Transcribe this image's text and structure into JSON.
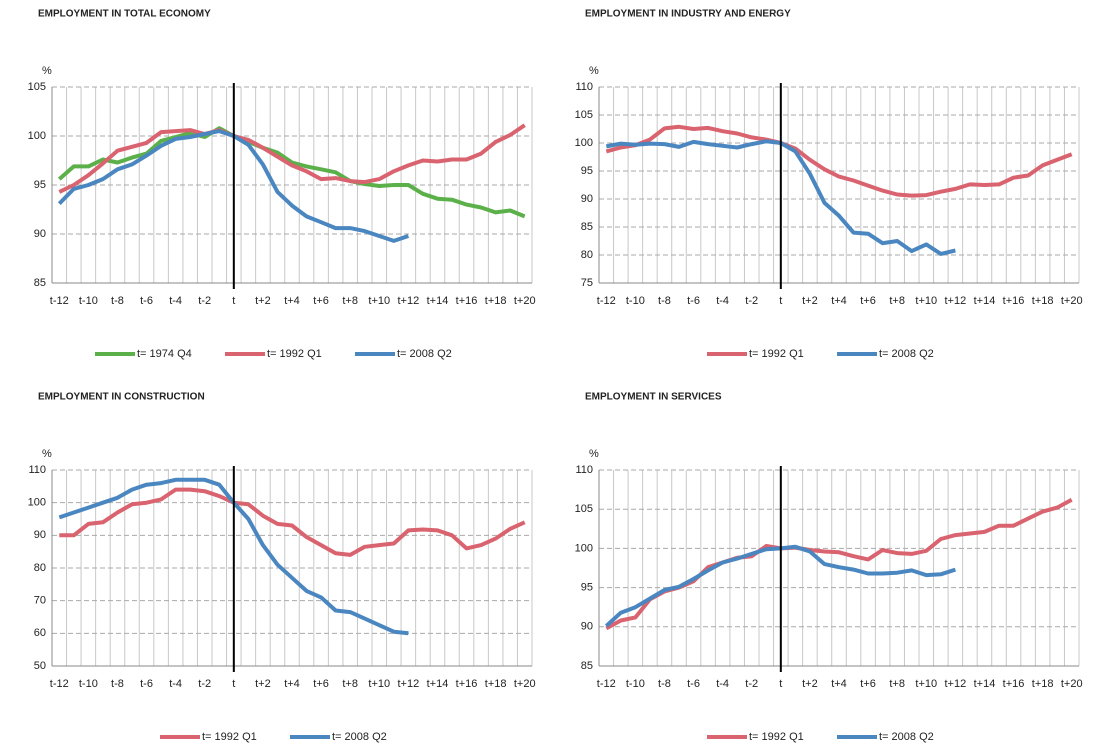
{
  "chart_data": [
    {
      "type": "line",
      "title": "EMPLOYMENT IN TOTAL ECONOMY",
      "y_unit": "%",
      "categories": [
        "t-12",
        null,
        "t-10",
        null,
        "t-8",
        null,
        "t-6",
        null,
        "t-4",
        null,
        "t-2",
        null,
        "t",
        null,
        "t+2",
        null,
        "t+4",
        null,
        "t+6",
        null,
        "t+8",
        null,
        "t+10",
        null,
        "t+12",
        null,
        "t+14",
        null,
        "t+16",
        null,
        "t+18",
        null,
        "t+20"
      ],
      "ylim": [
        85,
        105
      ],
      "yticks": [
        85,
        90,
        95,
        100,
        105
      ],
      "grid": true,
      "marker_line": {
        "at": "t",
        "color": "#000000"
      },
      "series": [
        {
          "name": "t= 1974 Q4",
          "color": "#5cb04a",
          "values": [
            95.6,
            96.9,
            96.9,
            97.6,
            97.3,
            97.8,
            98.2,
            99.5,
            99.9,
            100.3,
            99.9,
            100.8,
            100,
            99.4,
            98.8,
            98.3,
            97.3,
            96.9,
            96.6,
            96.3,
            95.4,
            95.1,
            94.9,
            95.0,
            95.0,
            94.1,
            93.6,
            93.5,
            93.0,
            92.7,
            92.2,
            92.4,
            91.8
          ]
        },
        {
          "name": "t= 1992 Q1",
          "color": "#d9636f",
          "values": [
            94.3,
            95.0,
            96.0,
            97.2,
            98.5,
            98.9,
            99.3,
            100.4,
            100.5,
            100.6,
            100.2,
            100.6,
            100,
            99.6,
            98.8,
            97.9,
            97.0,
            96.4,
            95.6,
            95.7,
            95.4,
            95.3,
            95.6,
            96.4,
            97.0,
            97.5,
            97.4,
            97.6,
            97.6,
            98.2,
            99.4,
            100.1,
            101.1
          ]
        },
        {
          "name": "t= 2008 Q2",
          "color": "#4a86c0",
          "values": [
            93.1,
            94.6,
            95.0,
            95.6,
            96.6,
            97.1,
            98.0,
            99.0,
            99.7,
            99.9,
            100.2,
            100.5,
            100,
            99.1,
            97.1,
            94.3,
            92.9,
            91.8,
            91.2,
            90.6,
            90.6,
            90.3,
            89.8,
            89.3,
            89.8,
            null,
            null,
            null,
            null,
            null,
            null,
            null,
            null
          ]
        }
      ]
    },
    {
      "type": "line",
      "title": "EMPLOYMENT IN INDUSTRY AND ENERGY",
      "y_unit": "%",
      "categories": [
        "t-12",
        null,
        "t-10",
        null,
        "t-8",
        null,
        "t-6",
        null,
        "t-4",
        null,
        "t-2",
        null,
        "t",
        null,
        "t+2",
        null,
        "t+4",
        null,
        "t+6",
        null,
        "t+8",
        null,
        "t+10",
        null,
        "t+12",
        null,
        "t+14",
        null,
        "t+16",
        null,
        "t+18",
        null,
        "t+20"
      ],
      "ylim": [
        75,
        110
      ],
      "yticks": [
        75,
        80,
        85,
        90,
        95,
        100,
        105,
        110
      ],
      "grid": true,
      "marker_line": {
        "at": "t",
        "color": "#000000"
      },
      "series": [
        {
          "name": "t= 1992 Q1",
          "color": "#d9636f",
          "values": [
            98.5,
            99.2,
            99.6,
            100.6,
            102.6,
            102.9,
            102.5,
            102.7,
            102.1,
            101.7,
            101.0,
            100.6,
            100,
            99.0,
            97.0,
            95.3,
            94.0,
            93.3,
            92.4,
            91.5,
            90.8,
            90.6,
            90.7,
            91.3,
            91.8,
            92.6,
            92.5,
            92.6,
            93.8,
            94.2,
            96.0,
            97.0,
            98.0
          ]
        },
        {
          "name": "t= 2008 Q2",
          "color": "#4a86c0",
          "values": [
            99.4,
            99.9,
            99.7,
            99.9,
            99.8,
            99.3,
            100.2,
            99.8,
            99.5,
            99.2,
            99.8,
            100.3,
            100,
            98.5,
            94.5,
            89.3,
            87.0,
            84.0,
            83.8,
            82.1,
            82.5,
            80.7,
            81.9,
            80.2,
            80.8,
            null,
            null,
            null,
            null,
            null,
            null,
            null,
            null
          ]
        }
      ]
    },
    {
      "type": "line",
      "title": "EMPLOYMENT IN CONSTRUCTION",
      "y_unit": "%",
      "categories": [
        "t-12",
        null,
        "t-10",
        null,
        "t-8",
        null,
        "t-6",
        null,
        "t-4",
        null,
        "t-2",
        null,
        "t",
        null,
        "t+2",
        null,
        "t+4",
        null,
        "t+6",
        null,
        "t+8",
        null,
        "t+10",
        null,
        "t+12",
        null,
        "t+14",
        null,
        "t+16",
        null,
        "t+18",
        null,
        "t+20"
      ],
      "ylim": [
        50,
        110
      ],
      "yticks": [
        50,
        60,
        70,
        80,
        90,
        100,
        110
      ],
      "grid": true,
      "marker_line": {
        "at": "t",
        "color": "#000000"
      },
      "series": [
        {
          "name": "t= 1992 Q1",
          "color": "#d9636f",
          "values": [
            90,
            90,
            93.5,
            94,
            97,
            99.5,
            100,
            101,
            104,
            104,
            103.5,
            102,
            100,
            99.5,
            96,
            93.5,
            93,
            89.5,
            87,
            84.5,
            84,
            86.5,
            87,
            87.5,
            91.5,
            91.8,
            91.5,
            90,
            86,
            87,
            89,
            92,
            94
          ]
        },
        {
          "name": "t= 2008 Q2",
          "color": "#4a86c0",
          "values": [
            95.5,
            97,
            98.5,
            100,
            101.5,
            104,
            105.5,
            106,
            107,
            107,
            107,
            105.5,
            100,
            95,
            87,
            81,
            77,
            73,
            71,
            67,
            66.5,
            64.5,
            62.5,
            60.5,
            60,
            null,
            null,
            null,
            null,
            null,
            null,
            null,
            null
          ]
        }
      ]
    },
    {
      "type": "line",
      "title": "EMPLOYMENT IN SERVICES",
      "y_unit": "%",
      "categories": [
        "t-12",
        null,
        "t-10",
        null,
        "t-8",
        null,
        "t-6",
        null,
        "t-4",
        null,
        "t-2",
        null,
        "t",
        null,
        "t+2",
        null,
        "t+4",
        null,
        "t+6",
        null,
        "t+8",
        null,
        "t+10",
        null,
        "t+12",
        null,
        "t+14",
        null,
        "t+16",
        null,
        "t+18",
        null,
        "t+20"
      ],
      "ylim": [
        85,
        110
      ],
      "yticks": [
        85,
        90,
        95,
        100,
        105,
        110
      ],
      "grid": true,
      "marker_line": {
        "at": "t",
        "color": "#000000"
      },
      "series": [
        {
          "name": "t= 1992 Q1",
          "color": "#d9636f",
          "values": [
            89.8,
            90.8,
            91.2,
            93.5,
            94.5,
            95.0,
            95.8,
            97.6,
            98.2,
            98.8,
            99.0,
            100.3,
            100,
            100.1,
            99.8,
            99.6,
            99.5,
            99.0,
            98.6,
            99.8,
            99.4,
            99.3,
            99.7,
            101.2,
            101.7,
            101.9,
            102.1,
            102.9,
            102.9,
            103.8,
            104.7,
            105.2,
            106.2
          ]
        },
        {
          "name": "t= 2008 Q2",
          "color": "#4a86c0",
          "values": [
            90.1,
            91.8,
            92.5,
            93.6,
            94.7,
            95.1,
            96.1,
            97.2,
            98.2,
            98.7,
            99.3,
            99.9,
            100,
            100.2,
            99.6,
            98.0,
            97.6,
            97.3,
            96.8,
            96.8,
            96.9,
            97.2,
            96.6,
            96.7,
            97.3,
            null,
            null,
            null,
            null,
            null,
            null,
            null,
            null
          ]
        }
      ]
    }
  ]
}
